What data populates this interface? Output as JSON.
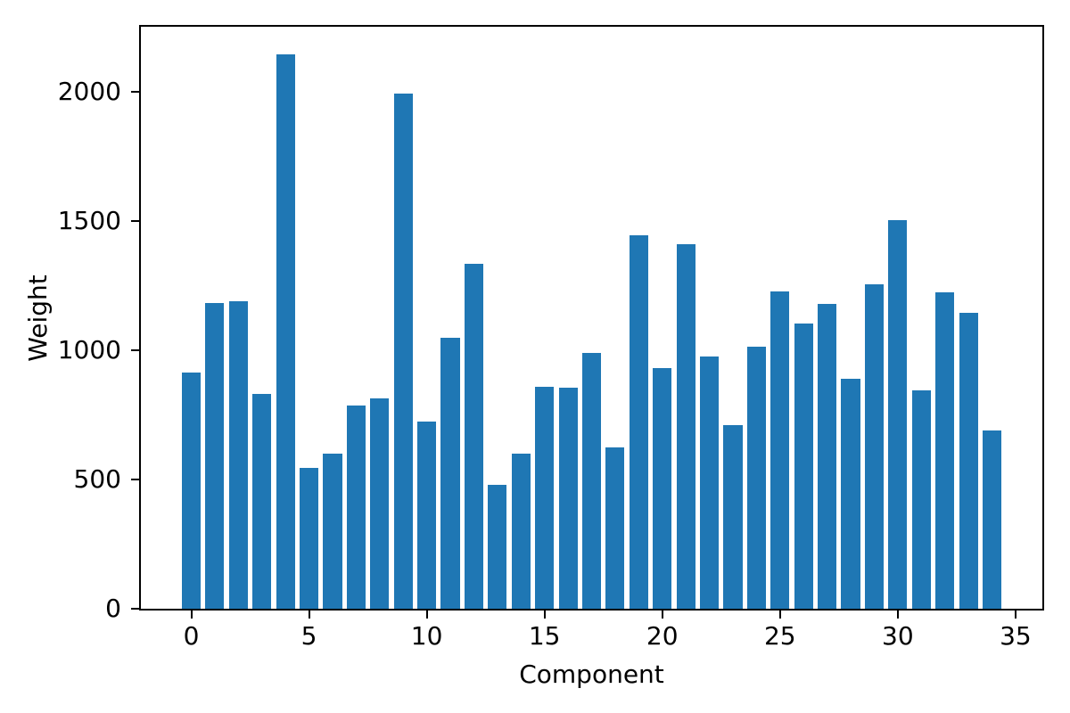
{
  "figure": {
    "background": "#ffffff",
    "spine_color": "#000000",
    "text_color": "#000000"
  },
  "chart_data": {
    "type": "bar",
    "title": "",
    "xlabel": "Component",
    "ylabel": "Weight",
    "x": [
      0,
      1,
      2,
      3,
      4,
      5,
      6,
      7,
      8,
      9,
      10,
      11,
      12,
      13,
      14,
      15,
      16,
      17,
      18,
      19,
      20,
      21,
      22,
      23,
      24,
      25,
      26,
      27,
      28,
      29,
      30,
      31,
      32,
      33,
      34
    ],
    "values": [
      915,
      1185,
      1190,
      830,
      2145,
      545,
      600,
      785,
      815,
      1995,
      725,
      1050,
      1335,
      480,
      600,
      860,
      855,
      990,
      625,
      1445,
      930,
      1410,
      975,
      710,
      1015,
      1230,
      1105,
      1180,
      890,
      1255,
      1505,
      845,
      1225,
      1145,
      690
    ],
    "bar_color": "#1f77b4",
    "bar_width": 0.8,
    "xlim": [
      -2.14,
      36.14
    ],
    "ylim": [
      0,
      2253
    ],
    "xticks": [
      0,
      5,
      10,
      15,
      20,
      25,
      30,
      35
    ],
    "yticks": [
      0,
      500,
      1000,
      1500,
      2000
    ],
    "grid": false,
    "legend": null
  }
}
